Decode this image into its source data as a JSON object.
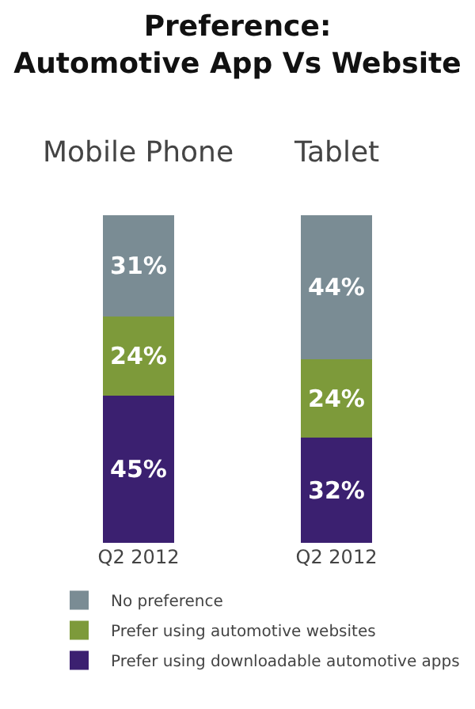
{
  "chart_data": {
    "type": "bar",
    "title": "Preference:\nAutomotive App Vs Website",
    "categories": [
      "Q2 2012",
      "Q2 2012"
    ],
    "annotations": [
      "Mobile Phone",
      "Tablet"
    ],
    "stacked": true,
    "legend": "bottom",
    "grid": false,
    "series": [
      {
        "name": "Prefer using downloadable automotive apps",
        "color": "#3b2070",
        "values": [
          45,
          32
        ],
        "value_labels": [
          "45%",
          "32%"
        ]
      },
      {
        "name": "Prefer using automotive websites",
        "color": "#7d9a3a",
        "values": [
          24,
          24
        ],
        "value_labels": [
          "24%",
          "24%"
        ]
      },
      {
        "name": "No preference",
        "color": "#7a8c94",
        "values": [
          31,
          44
        ],
        "value_labels": [
          "31%",
          "44%"
        ]
      }
    ]
  }
}
